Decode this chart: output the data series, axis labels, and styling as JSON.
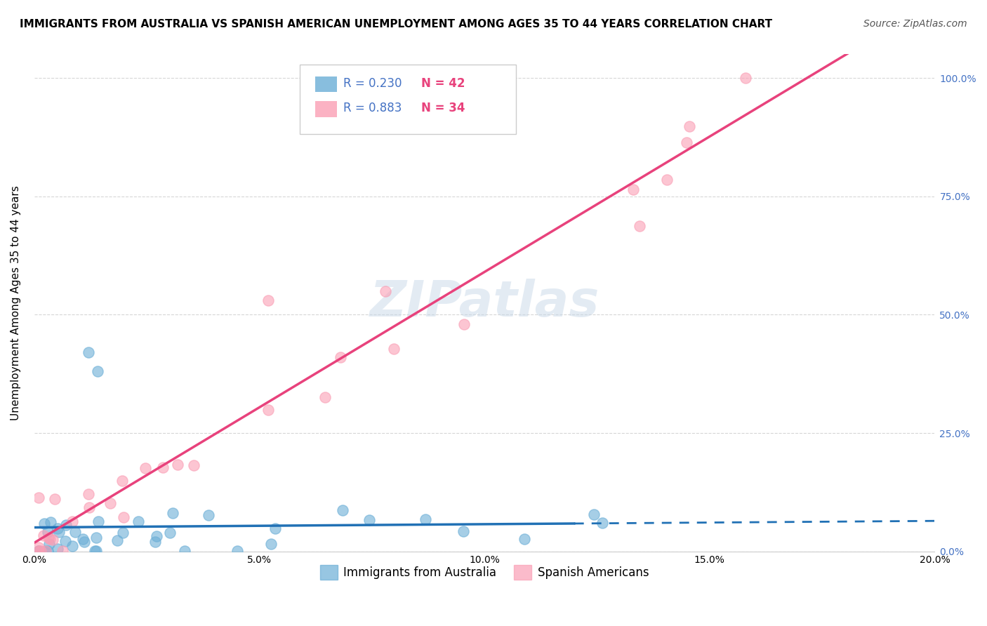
{
  "title": "IMMIGRANTS FROM AUSTRALIA VS SPANISH AMERICAN UNEMPLOYMENT AMONG AGES 35 TO 44 YEARS CORRELATION CHART",
  "source": "Source: ZipAtlas.com",
  "ylabel": "Unemployment Among Ages 35 to 44 years",
  "watermark": "ZIPatlas",
  "legend_r1": "R = 0.230",
  "legend_n1": "N = 42",
  "legend_r2": "R = 0.883",
  "legend_n2": "N = 34",
  "legend_label1": "Immigrants from Australia",
  "legend_label2": "Spanish Americans",
  "xlim": [
    0.0,
    0.2
  ],
  "ylim": [
    0.0,
    1.05
  ],
  "xtick_labels": [
    "0.0%",
    "5.0%",
    "10.0%",
    "15.0%",
    "20.0%"
  ],
  "xtick_vals": [
    0.0,
    0.05,
    0.1,
    0.15,
    0.2
  ],
  "ytick_labels_right": [
    "0.0%",
    "25.0%",
    "50.0%",
    "75.0%",
    "100.0%"
  ],
  "ytick_vals": [
    0.0,
    0.25,
    0.5,
    0.75,
    1.0
  ],
  "color_blue": "#6baed6",
  "color_pink": "#fa9fb5",
  "line_color_blue": "#2171b5",
  "line_color_pink": "#e8427c",
  "title_fontsize": 11,
  "source_fontsize": 10,
  "axis_label_fontsize": 11,
  "tick_fontsize": 10,
  "watermark_fontsize": 52,
  "watermark_color": "#c8d8e8",
  "watermark_alpha": 0.5,
  "r_color": "#4472c4",
  "n_color": "#e8427c"
}
